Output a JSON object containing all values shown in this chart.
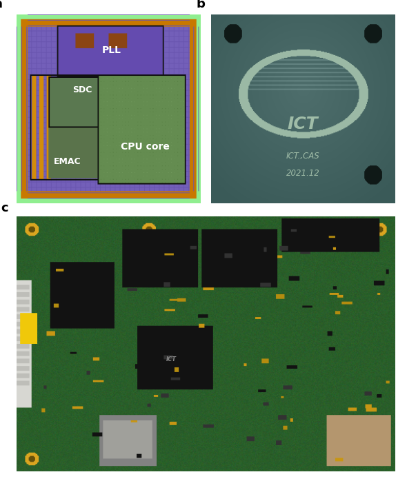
{
  "fig_width": 5.9,
  "fig_height": 6.98,
  "dpi": 100,
  "bg_color": "#ffffff",
  "label_fontsize": 13,
  "label_fontweight": "bold",
  "panel_a": {
    "label": "a",
    "chip_outer_green": [
      144,
      238,
      144
    ],
    "chip_orange": [
      255,
      140,
      0
    ],
    "chip_purple": [
      120,
      100,
      200
    ],
    "chip_dark_purple": [
      80,
      60,
      160
    ],
    "pll_purple": [
      110,
      80,
      190
    ],
    "pll_label": "PLL",
    "sdc_label": "SDC",
    "emac_label": "EMAC",
    "cpu_label": "CPU core",
    "cpu_green": [
      100,
      140,
      80
    ],
    "sdc_green": [
      100,
      130,
      90
    ],
    "orange_strip": [
      210,
      130,
      0
    ],
    "brown_comp": [
      139,
      69,
      19
    ]
  },
  "panel_b": {
    "label": "b",
    "chip_bg": [
      58,
      90,
      88
    ],
    "chip_dark": [
      30,
      50,
      48
    ],
    "logo_text": "ICT",
    "line1": "ICT.,CAS",
    "line2": "2021.12",
    "logo_color": [
      160,
      190,
      170
    ],
    "text_color": [
      170,
      200,
      180
    ]
  },
  "panel_c": {
    "label": "c",
    "pcb_green": [
      46,
      100,
      46
    ],
    "pcb_dark": [
      30,
      70,
      30
    ],
    "gold": [
      218,
      165,
      32
    ],
    "black_chip": [
      20,
      20,
      20
    ],
    "white_conn": [
      220,
      220,
      215
    ],
    "yellow_tag": [
      255,
      220,
      0
    ]
  }
}
